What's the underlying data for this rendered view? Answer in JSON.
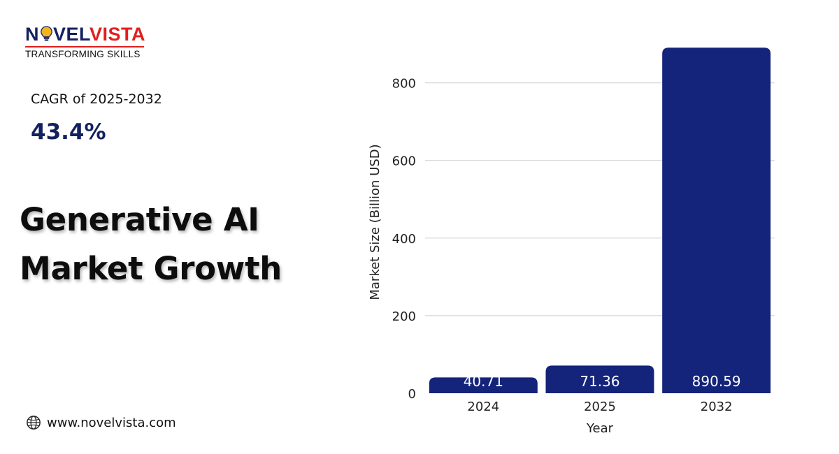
{
  "brand": {
    "logo_text_1": "N",
    "logo_text_2": "VEL",
    "logo_text_3": "VISTA",
    "tagline": "TRANSFORMING SKILLS"
  },
  "stats": {
    "cagr_label": "CAGR of 2025-2032",
    "cagr_value": "43.4%"
  },
  "headline": {
    "line1": "Generative AI",
    "line2": "Market Growth"
  },
  "footer": {
    "website": "www.novelvista.com",
    "icon": "globe-icon"
  },
  "colors": {
    "bar": "#14247a",
    "gridline": "#d6d6d6",
    "brand_dark": "#14215f",
    "brand_red": "#e0201f"
  },
  "chart_data": {
    "type": "bar",
    "categories": [
      "2024",
      "2025",
      "2032"
    ],
    "values": [
      40.71,
      71.36,
      890.59
    ],
    "value_labels": [
      "40.71",
      "71.36",
      "890.59"
    ],
    "xlabel": "Year",
    "ylabel": "Market Size (Billion USD)",
    "ylim": [
      0,
      900
    ],
    "yticks": [
      0,
      200,
      400,
      600,
      800
    ],
    "grid": true
  }
}
